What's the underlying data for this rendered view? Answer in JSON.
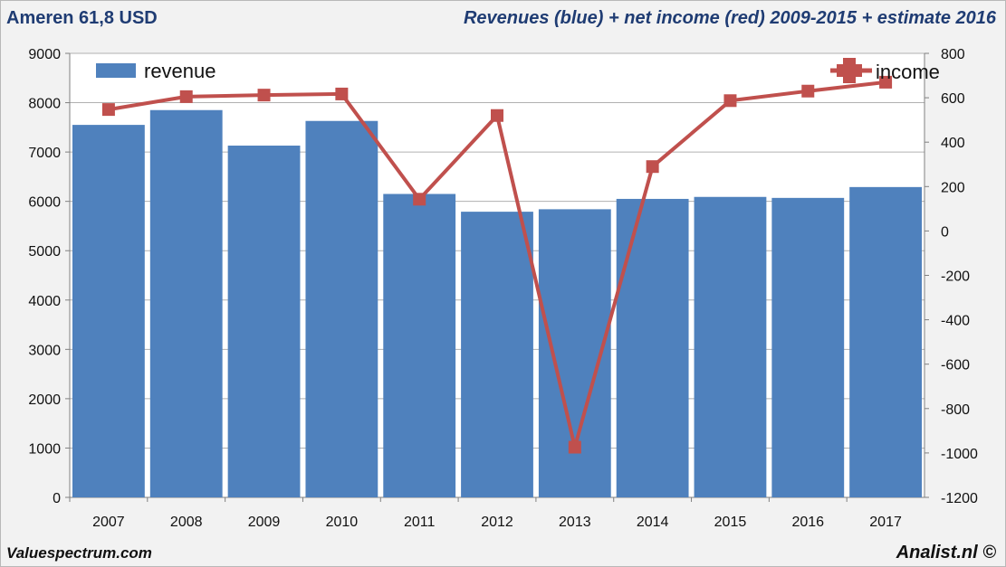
{
  "header": {
    "left": "Ameren 61,8 USD",
    "right": "Revenues (blue) + net income (red) 2009-2015 + estimate 2016"
  },
  "footer": {
    "left": "Valuespectrum.com",
    "right": "Analist.nl ©"
  },
  "chart_data": {
    "type": "bar",
    "categories": [
      "2007",
      "2008",
      "2009",
      "2010",
      "2011",
      "2012",
      "2013",
      "2014",
      "2015",
      "2016",
      "2017"
    ],
    "series": [
      {
        "name": "revenue",
        "type": "bar",
        "axis": "left",
        "color": "#4f81bd",
        "values": [
          7550,
          7850,
          7130,
          7630,
          6150,
          5790,
          5840,
          6050,
          6090,
          6070,
          6290
        ]
      },
      {
        "name": "income",
        "type": "line",
        "axis": "right",
        "color": "#c0504d",
        "values": [
          547,
          605,
          612,
          617,
          143,
          520,
          -974,
          290,
          587,
          630,
          670
        ]
      }
    ],
    "left_axis": {
      "min": 0,
      "max": 9000,
      "step": 1000,
      "ticks": [
        "0",
        "1000",
        "2000",
        "3000",
        "4000",
        "5000",
        "6000",
        "7000",
        "8000",
        "9000"
      ]
    },
    "right_axis": {
      "min": -1200,
      "max": 800,
      "step": 200,
      "ticks": [
        "-1200",
        "-1000",
        "-800",
        "-600",
        "-400",
        "-200",
        "0",
        "200",
        "400",
        "600",
        "800"
      ]
    },
    "grid": true,
    "legend": [
      "revenue",
      "income"
    ]
  }
}
